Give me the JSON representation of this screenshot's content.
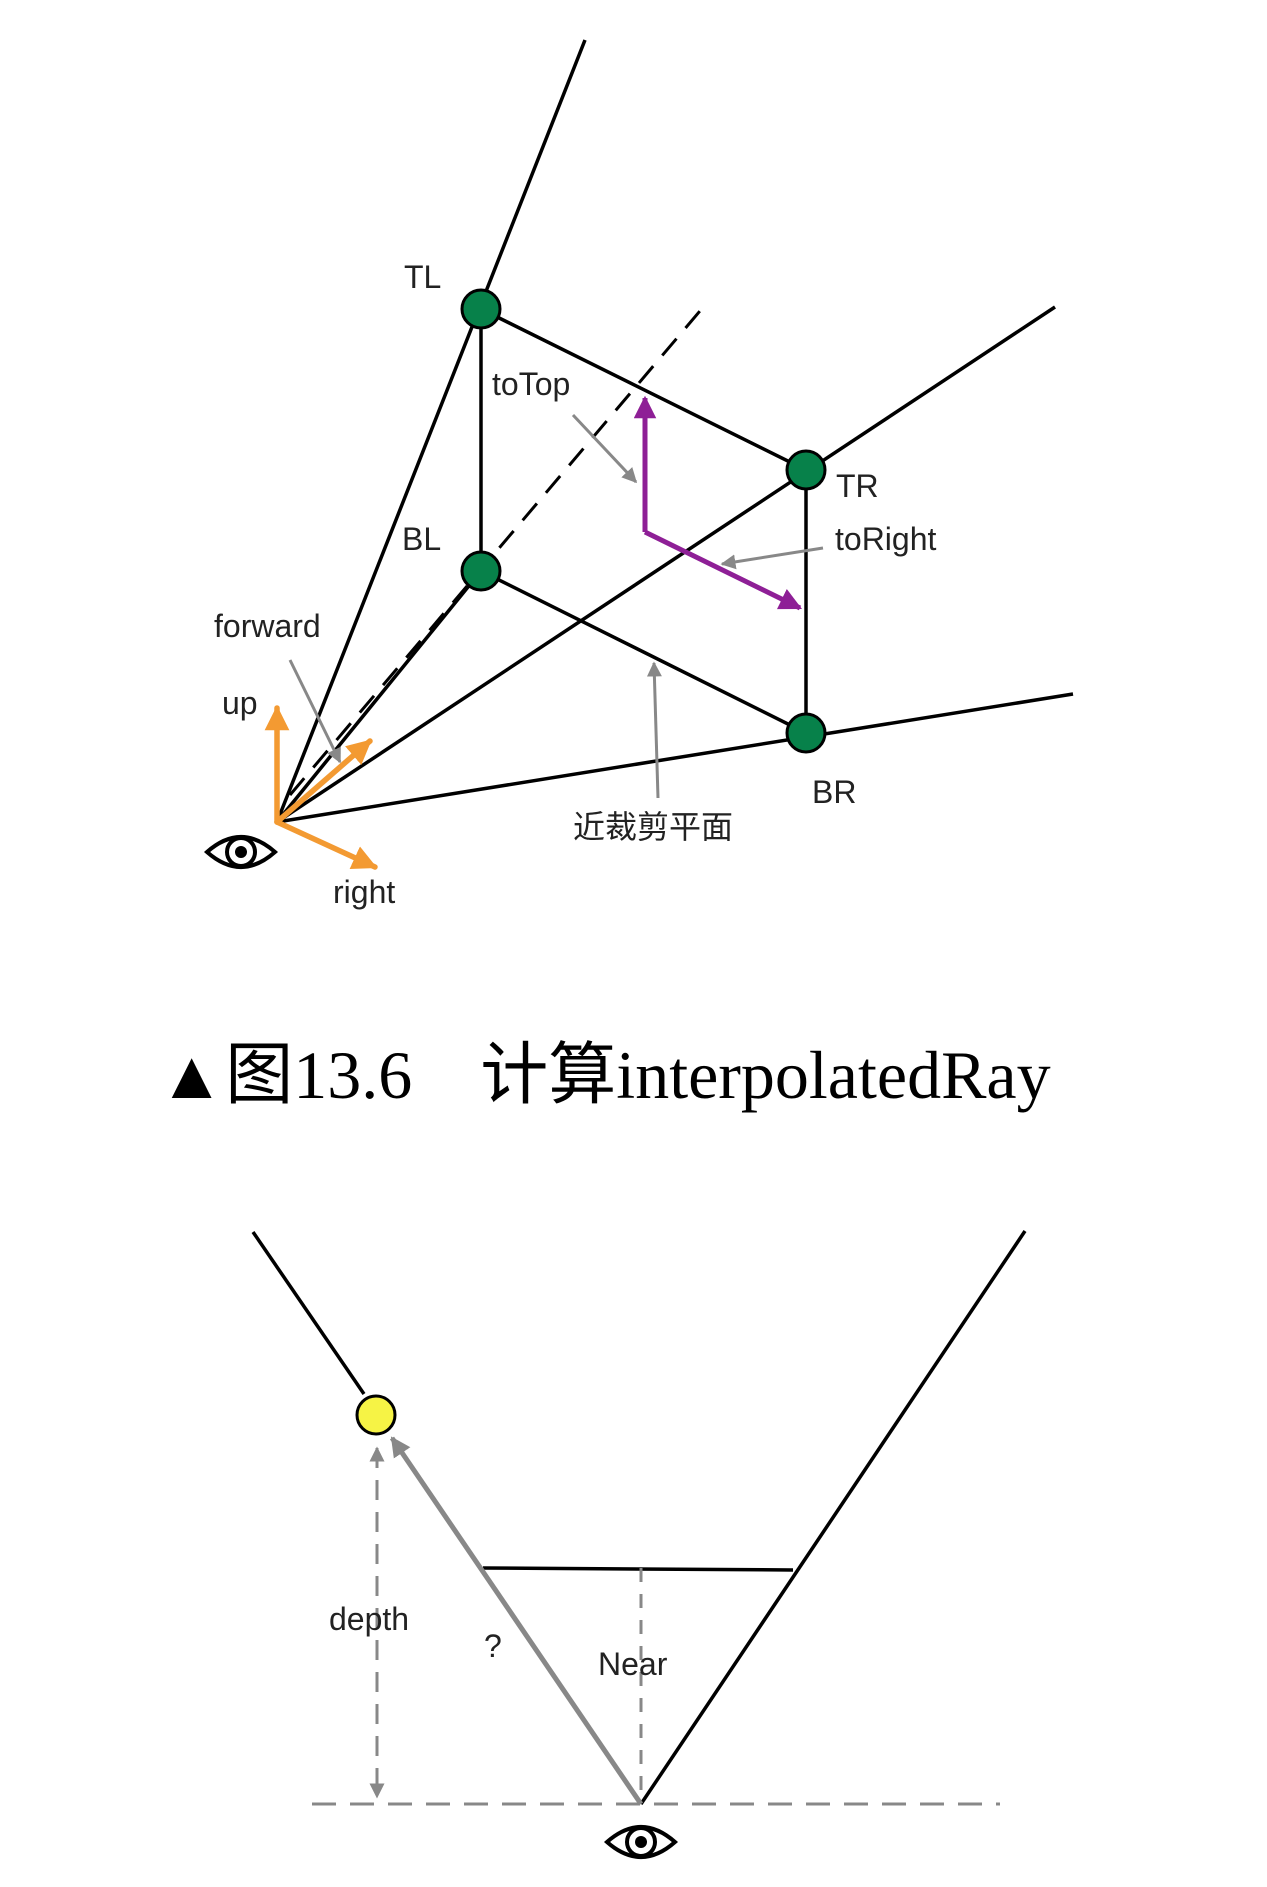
{
  "figure1": {
    "labels": {
      "tl": "TL",
      "tr": "TR",
      "bl": "BL",
      "br": "BR",
      "to_top": "toTop",
      "to_right": "toRight",
      "forward": "forward",
      "up": "up",
      "right": "right",
      "near_plane": "近裁剪平面"
    },
    "caption": "▲图13.6　计算interpolatedRay",
    "colors": {
      "corner_node": "#07814a",
      "axis_vector": "#f39a32",
      "offset_vector": "#8e1f96",
      "pointer": "#888888",
      "line": "#000000"
    }
  },
  "figure2": {
    "labels": {
      "depth": "depth",
      "unknown": "?",
      "near": "Near"
    },
    "colors": {
      "point": "#f6f345",
      "ray": "#888888",
      "line": "#000000"
    }
  }
}
